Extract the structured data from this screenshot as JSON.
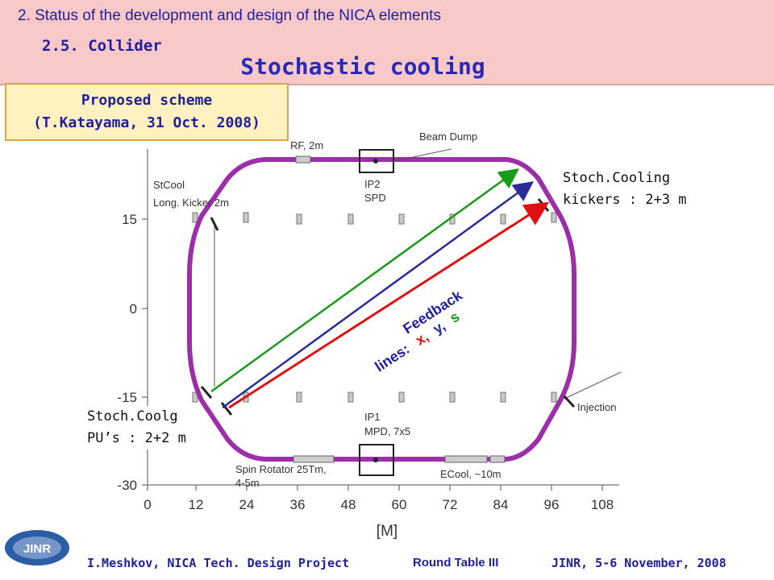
{
  "header": {
    "section": "2. Status of the development and design of the NICA elements",
    "subsection": "2.5. Collider",
    "title": "Stochastic cooling"
  },
  "scheme": {
    "line1": "Proposed scheme",
    "line2": "(T.Katayama, 31 Oct. 2008)"
  },
  "diagram": {
    "y_ticks": [
      "15",
      "0",
      "-15",
      "-30"
    ],
    "x_ticks": [
      "0",
      "12",
      "24",
      "36",
      "48",
      "60",
      "72",
      "84",
      "96",
      "108"
    ],
    "x_unit": "[M]",
    "labels": {
      "rf": "RF, 2m",
      "beam_dump": "Beam Dump",
      "ip2_a": "IP2",
      "ip2_b": "SPD",
      "stcool_a": "StCool",
      "stcool_b": "Long. Kicker 2m",
      "ip1_a": "IP1",
      "ip1_b": "MPD, 7x5",
      "spin_a": "Spin Rotator 25Tm,",
      "spin_b": "4-5m",
      "ecool": "ECool, ~10m",
      "injection": "Injection"
    },
    "colors": {
      "ring": "#9c2fa8",
      "x_line": "#e01010",
      "y_line": "#2a2a9a",
      "s_line": "#1a9a1a"
    }
  },
  "notes": {
    "kickers_1": "Stoch.Cooling",
    "kickers_2": "kickers : 2+3 m",
    "pus_1": "Stoch.Coolg",
    "pus_2": "PU’s : 2+2 m"
  },
  "feedback": {
    "line1": "Feedback",
    "line2_prefix": "lines:",
    "x": "x,",
    "y": "y,",
    "s": "s"
  },
  "footer": {
    "left": "I.Meshkov, NICA Tech. Design Project",
    "middle": "Round Table III",
    "right": "JINR, 5-6 November, 2008",
    "logo_text": "JINR"
  }
}
